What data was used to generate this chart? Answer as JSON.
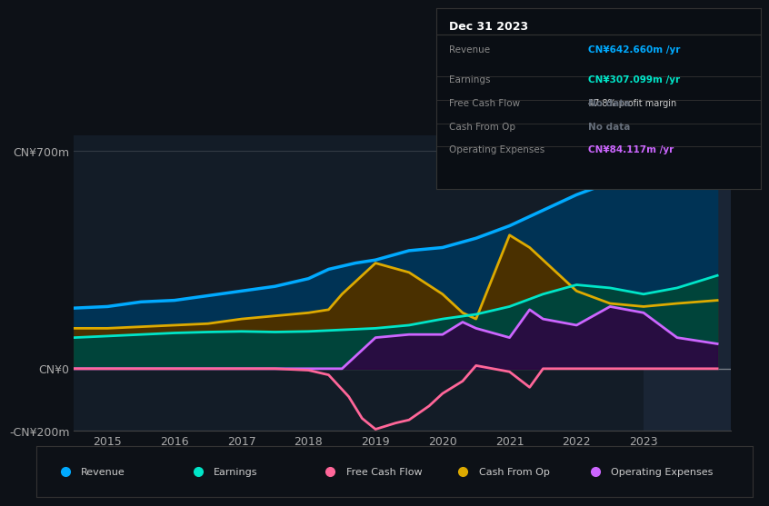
{
  "bg_color": "#0d1117",
  "plot_bg_color": "#131c27",
  "highlight_bg_color": "#1a2535",
  "grid_color": "#ffffff22",
  "title_text": "Dec 31 2023",
  "table_rows": [
    {
      "label": "Revenue",
      "value": "CN¥642.660m /yr",
      "value_color": "#00aaff",
      "note": null
    },
    {
      "label": "Earnings",
      "value": "CN¥307.099m /yr",
      "value_color": "#00e5c8",
      "note": "47.8% profit margin"
    },
    {
      "label": "Free Cash Flow",
      "value": "No data",
      "value_color": "#666e7a",
      "note": null
    },
    {
      "label": "Cash From Op",
      "value": "No data",
      "value_color": "#666e7a",
      "note": null
    },
    {
      "label": "Operating Expenses",
      "value": "CN¥84.117m /yr",
      "value_color": "#cc66ff",
      "note": null
    }
  ],
  "ylim": [
    -200,
    750
  ],
  "yticks": [
    -200,
    0,
    700
  ],
  "ytick_labels": [
    "-CN¥200m",
    "CN¥0",
    "CN¥700m"
  ],
  "xticks": [
    2015,
    2016,
    2017,
    2018,
    2019,
    2020,
    2021,
    2022,
    2023
  ],
  "xlim": [
    2014.5,
    2024.3
  ],
  "legend_entries": [
    {
      "label": "Revenue",
      "color": "#00aaff"
    },
    {
      "label": "Earnings",
      "color": "#00e5c8"
    },
    {
      "label": "Free Cash Flow",
      "color": "#ff6699"
    },
    {
      "label": "Cash From Op",
      "color": "#ddaa00"
    },
    {
      "label": "Operating Expenses",
      "color": "#cc66ff"
    }
  ],
  "revenue": {
    "x": [
      2014.5,
      2015.0,
      2015.5,
      2016.0,
      2016.5,
      2017.0,
      2017.5,
      2018.0,
      2018.3,
      2018.5,
      2018.7,
      2019.0,
      2019.5,
      2020.0,
      2020.5,
      2021.0,
      2021.5,
      2022.0,
      2022.5,
      2023.0,
      2023.5,
      2024.1
    ],
    "y": [
      195,
      200,
      215,
      220,
      235,
      250,
      265,
      290,
      320,
      330,
      340,
      350,
      380,
      390,
      420,
      460,
      510,
      560,
      600,
      630,
      650,
      660
    ],
    "color": "#00aaff",
    "fill_color": "#003355",
    "lw": 2.5
  },
  "earnings": {
    "x": [
      2014.5,
      2015.0,
      2015.5,
      2016.0,
      2016.5,
      2017.0,
      2017.5,
      2018.0,
      2018.5,
      2019.0,
      2019.5,
      2020.0,
      2020.5,
      2021.0,
      2021.5,
      2022.0,
      2022.5,
      2023.0,
      2023.5,
      2024.1
    ],
    "y": [
      100,
      105,
      110,
      115,
      118,
      120,
      118,
      120,
      125,
      130,
      140,
      160,
      175,
      200,
      240,
      270,
      260,
      240,
      260,
      300
    ],
    "color": "#00e5c8",
    "fill_color": "#00443a",
    "lw": 2.0
  },
  "free_cash_flow": {
    "x": [
      2014.5,
      2015.0,
      2015.5,
      2016.0,
      2016.5,
      2017.0,
      2017.5,
      2018.0,
      2018.3,
      2018.6,
      2018.8,
      2019.0,
      2019.3,
      2019.5,
      2019.8,
      2020.0,
      2020.3,
      2020.5,
      2021.0,
      2021.3,
      2021.5,
      2022.0,
      2022.5,
      2023.0,
      2023.5,
      2024.1
    ],
    "y": [
      0,
      0,
      0,
      0,
      0,
      0,
      0,
      -5,
      -20,
      -90,
      -160,
      -195,
      -175,
      -165,
      -120,
      -80,
      -40,
      10,
      -10,
      -60,
      0,
      0,
      0,
      0,
      0,
      0
    ],
    "color": "#ff6699",
    "lw": 2.0
  },
  "cash_from_op": {
    "x": [
      2014.5,
      2015.0,
      2015.5,
      2016.0,
      2016.5,
      2017.0,
      2017.5,
      2018.0,
      2018.3,
      2018.5,
      2018.8,
      2019.0,
      2019.5,
      2020.0,
      2020.3,
      2020.5,
      2021.0,
      2021.3,
      2021.5,
      2022.0,
      2022.5,
      2023.0,
      2023.5,
      2024.1
    ],
    "y": [
      130,
      130,
      135,
      140,
      145,
      160,
      170,
      180,
      190,
      240,
      300,
      340,
      310,
      240,
      180,
      160,
      430,
      390,
      350,
      250,
      210,
      200,
      210,
      220
    ],
    "color": "#ddaa00",
    "fill_color": "#4a3000",
    "lw": 2.0
  },
  "operating_expenses": {
    "x": [
      2014.5,
      2015.0,
      2015.5,
      2016.0,
      2016.5,
      2017.0,
      2017.5,
      2018.0,
      2018.5,
      2019.0,
      2019.5,
      2020.0,
      2020.3,
      2020.5,
      2021.0,
      2021.3,
      2021.5,
      2022.0,
      2022.5,
      2023.0,
      2023.5,
      2024.1
    ],
    "y": [
      0,
      0,
      0,
      0,
      0,
      0,
      0,
      0,
      0,
      100,
      110,
      110,
      150,
      130,
      100,
      190,
      160,
      140,
      200,
      180,
      100,
      80
    ],
    "color": "#cc66ff",
    "fill_color": "#330044",
    "lw": 2.0
  },
  "highlight_xmin": 2023.0,
  "highlight_xmax": 2024.3
}
